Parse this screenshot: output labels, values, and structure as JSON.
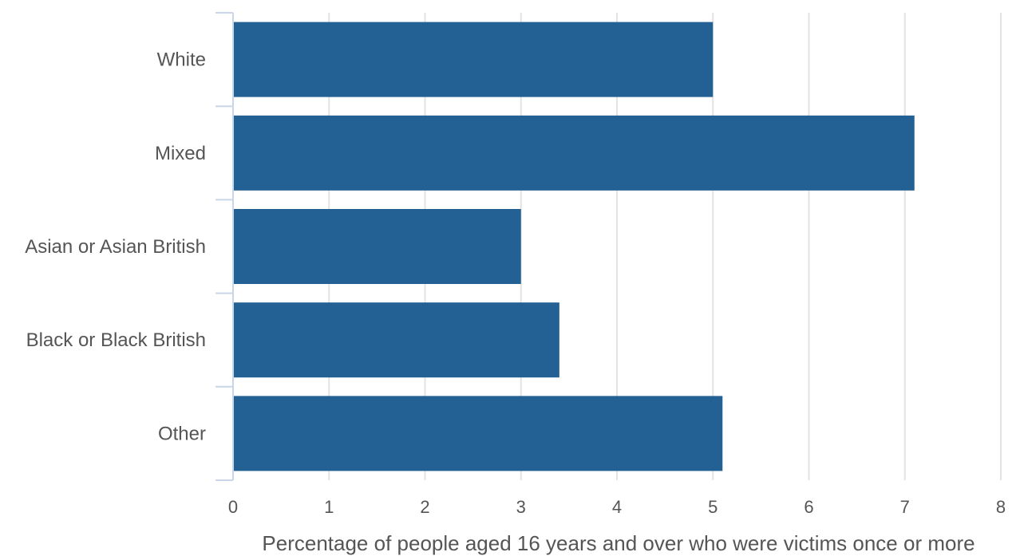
{
  "chart_data": {
    "type": "bar",
    "orientation": "horizontal",
    "categories": [
      "White",
      "Mixed",
      "Asian or Asian British",
      "Black or Black British",
      "Other"
    ],
    "values": [
      5.0,
      7.1,
      3.0,
      3.4,
      5.1
    ],
    "xlabel": "Percentage of people aged 16 years and over who were victims once or more",
    "ylabel": "",
    "xlim": [
      0,
      8
    ],
    "xticks": [
      "0",
      "1",
      "2",
      "3",
      "4",
      "5",
      "6",
      "7",
      "8"
    ],
    "grid": true,
    "bar_color": "#236194"
  }
}
